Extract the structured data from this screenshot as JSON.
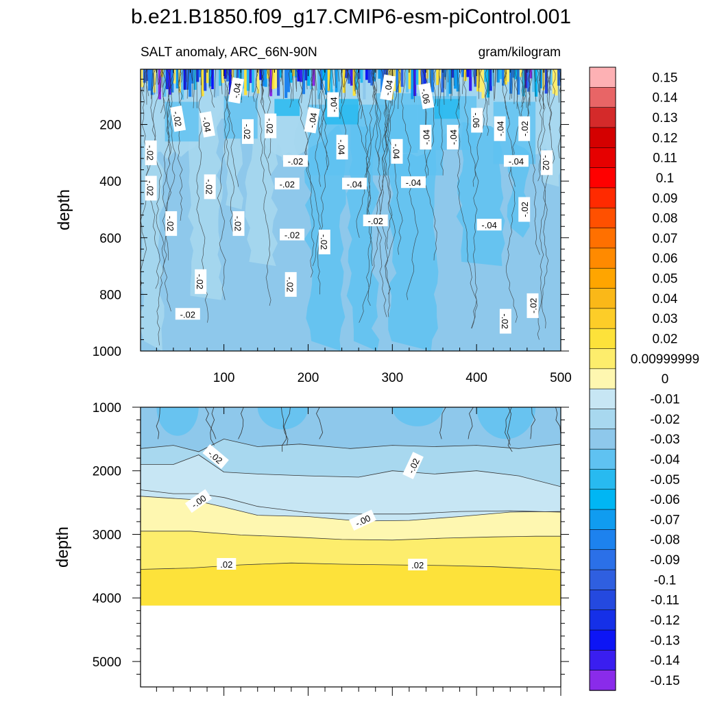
{
  "chart_data": [
    {
      "type": "heatmap",
      "panel": "upper",
      "title": "b.e21.B1850.f09_g17.CMIP6-esm-piControl.001",
      "left_subtitle": "SALT anomaly, ARC_66N-90N",
      "right_subtitle": "gram/kilogram",
      "xlabel": "",
      "ylabel": "depth",
      "xlim": [
        1,
        500
      ],
      "ylim": [
        1000,
        5
      ],
      "x_ticks": [
        "100",
        "200",
        "300",
        "400",
        "500"
      ],
      "y_ticks": [
        "200",
        "400",
        "600",
        "800",
        "1000"
      ],
      "contour_labels": [
        {
          "text": "-.04",
          "x": 115,
          "y": 80,
          "angle": -80
        },
        {
          "text": "-.02",
          "x": 45,
          "y": 180,
          "angle": 80
        },
        {
          "text": "-.04",
          "x": 80,
          "y": 200,
          "angle": 80
        },
        {
          "text": "-.02",
          "x": 13,
          "y": 300,
          "angle": 90
        },
        {
          "text": "-.02",
          "x": 155,
          "y": 205,
          "angle": 90
        },
        {
          "text": "-.02",
          "x": 128,
          "y": 225,
          "angle": 90
        },
        {
          "text": "-.04",
          "x": 205,
          "y": 185,
          "angle": -80
        },
        {
          "text": "-.04",
          "x": 230,
          "y": 130,
          "angle": -90
        },
        {
          "text": "-.04",
          "x": 295,
          "y": 70,
          "angle": -80
        },
        {
          "text": "-.06",
          "x": 340,
          "y": 100,
          "angle": 80
        },
        {
          "text": "-.02",
          "x": 185,
          "y": 330,
          "angle": 0
        },
        {
          "text": "-.02",
          "x": 13,
          "y": 425,
          "angle": 90
        },
        {
          "text": "-.02",
          "x": 83,
          "y": 420,
          "angle": 90
        },
        {
          "text": "-.04",
          "x": 240,
          "y": 280,
          "angle": 90
        },
        {
          "text": "-.04",
          "x": 305,
          "y": 295,
          "angle": 90
        },
        {
          "text": "-.04",
          "x": 340,
          "y": 245,
          "angle": -90
        },
        {
          "text": "-.04",
          "x": 372,
          "y": 245,
          "angle": -90
        },
        {
          "text": "-.06",
          "x": 400,
          "y": 185,
          "angle": 90
        },
        {
          "text": "-.04",
          "x": 428,
          "y": 215,
          "angle": -90
        },
        {
          "text": "-.02",
          "x": 457,
          "y": 215,
          "angle": -90
        },
        {
          "text": "-.04",
          "x": 447,
          "y": 330,
          "angle": 0
        },
        {
          "text": "-.02",
          "x": 483,
          "y": 335,
          "angle": 90
        },
        {
          "text": "-.02",
          "x": 175,
          "y": 410,
          "angle": 0
        },
        {
          "text": "-.04",
          "x": 255,
          "y": 410,
          "angle": 0
        },
        {
          "text": "-.04",
          "x": 325,
          "y": 405,
          "angle": 0
        },
        {
          "text": "-.02",
          "x": 37,
          "y": 550,
          "angle": 90
        },
        {
          "text": "-.02",
          "x": 117,
          "y": 550,
          "angle": 90
        },
        {
          "text": "-.02",
          "x": 280,
          "y": 540,
          "angle": 0
        },
        {
          "text": "-.02",
          "x": 457,
          "y": 500,
          "angle": -90
        },
        {
          "text": "-.04",
          "x": 415,
          "y": 555,
          "angle": 0
        },
        {
          "text": "-.02",
          "x": 181,
          "y": 590,
          "angle": 0
        },
        {
          "text": "-.02",
          "x": 219,
          "y": 615,
          "angle": 90
        },
        {
          "text": "-.02",
          "x": 72,
          "y": 755,
          "angle": 90
        },
        {
          "text": "-.02",
          "x": 179,
          "y": 765,
          "angle": 90
        },
        {
          "text": "-.02",
          "x": 57,
          "y": 870,
          "angle": 0
        },
        {
          "text": "-.02",
          "x": 467,
          "y": 840,
          "angle": -90
        },
        {
          "text": "-.02",
          "x": 434,
          "y": 895,
          "angle": 90
        }
      ]
    },
    {
      "type": "heatmap",
      "panel": "lower",
      "xlabel": "",
      "ylabel": "depth",
      "xlim": [
        1,
        500
      ],
      "ylim": [
        5400,
        1000
      ],
      "y_ticks": [
        "1000",
        "2000",
        "3000",
        "4000",
        "5000"
      ],
      "data_bottom_depth": 4120,
      "contour_depths": [
        {
          "level": -0.03,
          "x": [
            1,
            40,
            70,
            100,
            140,
            190,
            250,
            300,
            350,
            400,
            450,
            500
          ],
          "depth": [
            1650,
            1600,
            1700,
            1500,
            1620,
            1580,
            1650,
            1600,
            1620,
            1600,
            1650,
            1580
          ]
        },
        {
          "level": -0.02,
          "x": [
            1,
            40,
            70,
            100,
            140,
            200,
            260,
            300,
            350,
            400,
            450,
            500
          ],
          "depth": [
            1900,
            1900,
            1750,
            2020,
            2050,
            2080,
            2100,
            2000,
            2050,
            2000,
            2080,
            2250
          ]
        },
        {
          "level": -0.01,
          "x": [
            1,
            40,
            70,
            100,
            140,
            200,
            260,
            320,
            380,
            440,
            500
          ],
          "depth": [
            2300,
            2360,
            2360,
            2420,
            2560,
            2660,
            2680,
            2680,
            2640,
            2630,
            2650
          ]
        },
        {
          "level": 0.0,
          "x": [
            1,
            60,
            100,
            140,
            200,
            260,
            320,
            380,
            440,
            500
          ],
          "depth": [
            2400,
            2450,
            2570,
            2700,
            2720,
            2790,
            2780,
            2720,
            2650,
            2640
          ]
        },
        {
          "level": 0.01,
          "x": [
            1,
            60,
            120,
            180,
            240,
            300,
            360,
            420,
            470,
            500
          ],
          "depth": [
            2950,
            2950,
            3010,
            3040,
            3080,
            3090,
            3060,
            3040,
            3030,
            3030
          ]
        },
        {
          "level": 0.02,
          "x": [
            1,
            60,
            120,
            180,
            240,
            300,
            360,
            420,
            470,
            500
          ],
          "depth": [
            3550,
            3530,
            3480,
            3450,
            3470,
            3480,
            3490,
            3510,
            3540,
            3560
          ]
        }
      ],
      "contour_labels": [
        {
          "text": "-.02",
          "x": 90,
          "y": 1780,
          "angle": 40
        },
        {
          "text": "-.02",
          "x": 325,
          "y": 1920,
          "angle": -65
        },
        {
          "text": "-.00",
          "x": 70,
          "y": 2480,
          "angle": -35
        },
        {
          "text": "-.00",
          "x": 265,
          "y": 2780,
          "angle": -25
        },
        {
          "text": ".02",
          "x": 103,
          "y": 3470,
          "angle": 0
        },
        {
          "text": ".02",
          "x": 330,
          "y": 3480,
          "angle": 0
        }
      ]
    }
  ],
  "colorbar": {
    "levels": [
      "0.15",
      "0.14",
      "0.13",
      "0.12",
      "0.11",
      "0.1",
      "0.09",
      "0.08",
      "0.07",
      "0.06",
      "0.05",
      "0.04",
      "0.03",
      "0.02",
      "0.00999999",
      "0",
      "-0.01",
      "-0.02",
      "-0.03",
      "-0.04",
      "-0.05",
      "-0.06",
      "-0.07",
      "-0.08",
      "-0.09",
      "-0.1",
      "-0.11",
      "-0.12",
      "-0.13",
      "-0.14",
      "-0.15"
    ],
    "colors": [
      "#fdb1b4",
      "#e86566",
      "#d42a2a",
      "#d40000",
      "#e60000",
      "#ff0000",
      "#ff2a00",
      "#ff5000",
      "#ff7000",
      "#ff8a00",
      "#ffa500",
      "#fab818",
      "#fdcd28",
      "#fde23a",
      "#fded6c",
      "#fef7b0",
      "#c7e6f4",
      "#a8d8ef",
      "#8ec8eb",
      "#5fc2f1",
      "#28baf0",
      "#00b6f4",
      "#109cf0",
      "#1d82ee",
      "#2b70e8",
      "#2f5fe0",
      "#2449df",
      "#1530e8",
      "#0d15f5",
      "#3a1ef0",
      "#8a2bea"
    ]
  },
  "fill_colors": {
    "neg_001": "#c7e6f4",
    "neg_002": "#a8d8ef",
    "neg_003": "#8ec8eb",
    "neg_004": "#5fc2f1",
    "neg_005": "#28baf0",
    "pos_000": "#fef7b0",
    "pos_001": "#fded6c",
    "pos_002": "#fde23a"
  }
}
